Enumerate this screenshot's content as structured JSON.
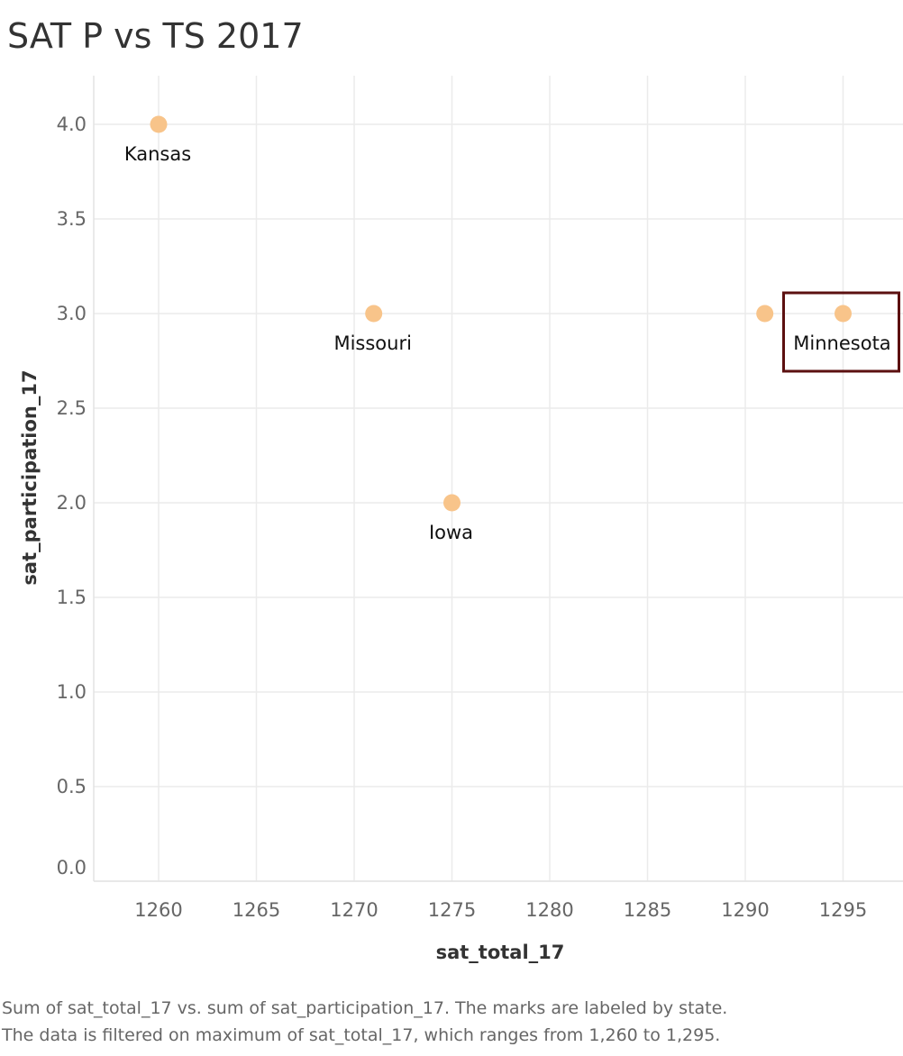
{
  "chart_data": {
    "type": "scatter",
    "title": "SAT P vs TS 2017",
    "xlabel": "sat_total_17",
    "ylabel": "sat_participation_17",
    "x_ticks": [
      1260,
      1265,
      1270,
      1275,
      1280,
      1285,
      1290,
      1295
    ],
    "x_tick_labels": [
      "1260",
      "1265",
      "1270",
      "1275",
      "1280",
      "1285",
      "1290",
      "1295"
    ],
    "y_ticks": [
      0.0,
      0.5,
      1.0,
      1.5,
      2.0,
      2.5,
      3.0,
      3.5,
      4.0
    ],
    "y_tick_labels": [
      "0.0",
      "0.5",
      "1.0",
      "1.5",
      "2.0",
      "2.5",
      "3.0",
      "3.5",
      "4.0"
    ],
    "grid": true,
    "points": [
      {
        "x": 1260,
        "y": 4,
        "label": "Kansas"
      },
      {
        "x": 1271,
        "y": 3,
        "label": "Missouri"
      },
      {
        "x": 1275,
        "y": 2,
        "label": "Iowa"
      },
      {
        "x": 1291,
        "y": 3,
        "label": ""
      },
      {
        "x": 1295,
        "y": 3,
        "label": "Minnesota",
        "highlighted": true
      }
    ],
    "colors": {
      "marker": "#f8c48a",
      "highlight_box": "#5c1010",
      "grid": "#ebebeb"
    }
  },
  "caption": {
    "line1": "Sum of sat_total_17 vs. sum of sat_participation_17.  The marks are labeled by state.",
    "line2": "The data is filtered on maximum of sat_total_17, which ranges from 1,260 to 1,295."
  }
}
